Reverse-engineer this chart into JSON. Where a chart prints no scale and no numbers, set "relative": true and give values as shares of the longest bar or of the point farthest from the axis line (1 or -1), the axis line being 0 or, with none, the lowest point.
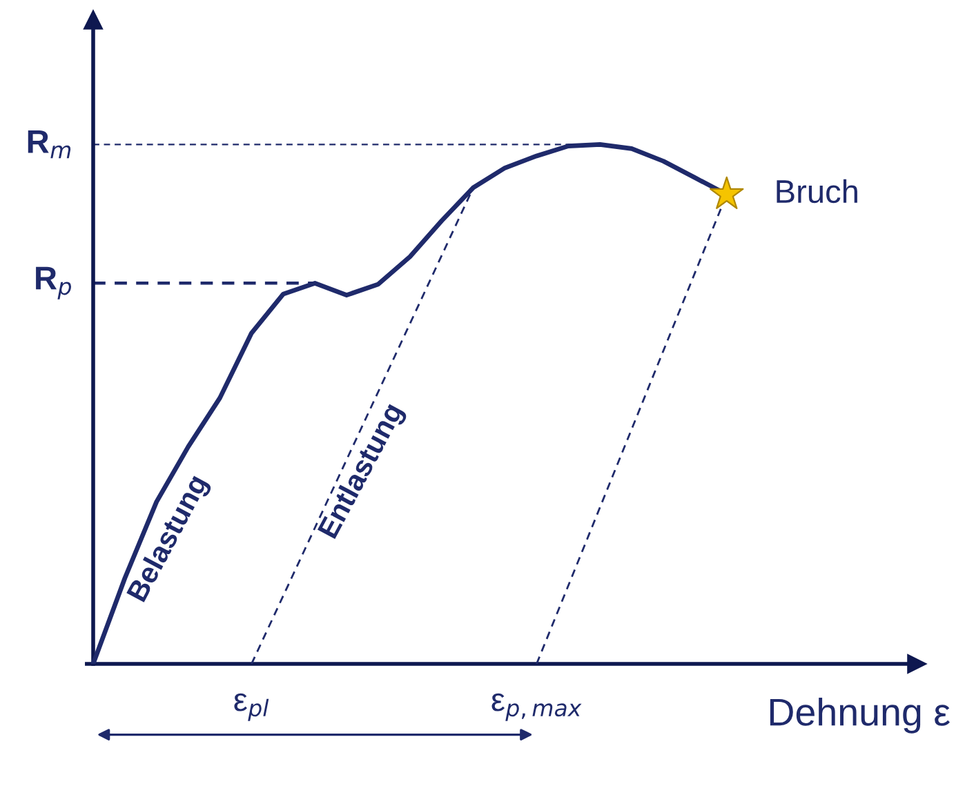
{
  "chart_data": {
    "type": "line",
    "relative": true,
    "xlabel": "Dehnung ε",
    "categories": [
      null,
      null,
      null,
      null,
      null,
      "ε$_{pl}$",
      null,
      null,
      null,
      null,
      null,
      null,
      null,
      null,
      "ε$_{p,max}$",
      null,
      null,
      null,
      null,
      null,
      null
    ],
    "series": [
      {
        "color": "#1f2a6b",
        "line_style": "solid",
        "values": [
          0,
          0.165,
          0.312,
          0.418,
          0.512,
          0.637,
          0.712,
          0.733,
          0.71,
          0.731,
          0.784,
          0.853,
          0.917,
          0.955,
          0.978,
          0.997,
          1,
          0.992,
          0.968,
          0.936,
          0.904
        ]
      },
      {
        "color": "#1f2a6b",
        "line_style": "dashed",
        "values": [
          null,
          null,
          null,
          null,
          null,
          0,
          null,
          null,
          null,
          null,
          null,
          null,
          0.917,
          null,
          null,
          null,
          null,
          null,
          null,
          null,
          null
        ]
      },
      {
        "color": "#1f2a6b",
        "line_style": "dashed",
        "values": [
          null,
          null,
          null,
          null,
          null,
          null,
          null,
          null,
          null,
          null,
          null,
          null,
          null,
          null,
          0,
          null,
          null,
          null,
          null,
          null,
          0.904
        ]
      }
    ],
    "ref_lines": [
      {
        "axis": "y",
        "value": 1,
        "label": "R$_{m}$",
        "line_style": "dashed",
        "color": "#1f2a6b"
      },
      {
        "axis": "y",
        "value": 0.733,
        "label": "R$_{p}$",
        "line_style": "dashed",
        "color": "#1f2a6b"
      }
    ],
    "annotations": [
      "Belastung",
      "Entlastung",
      "Bruch"
    ]
  }
}
